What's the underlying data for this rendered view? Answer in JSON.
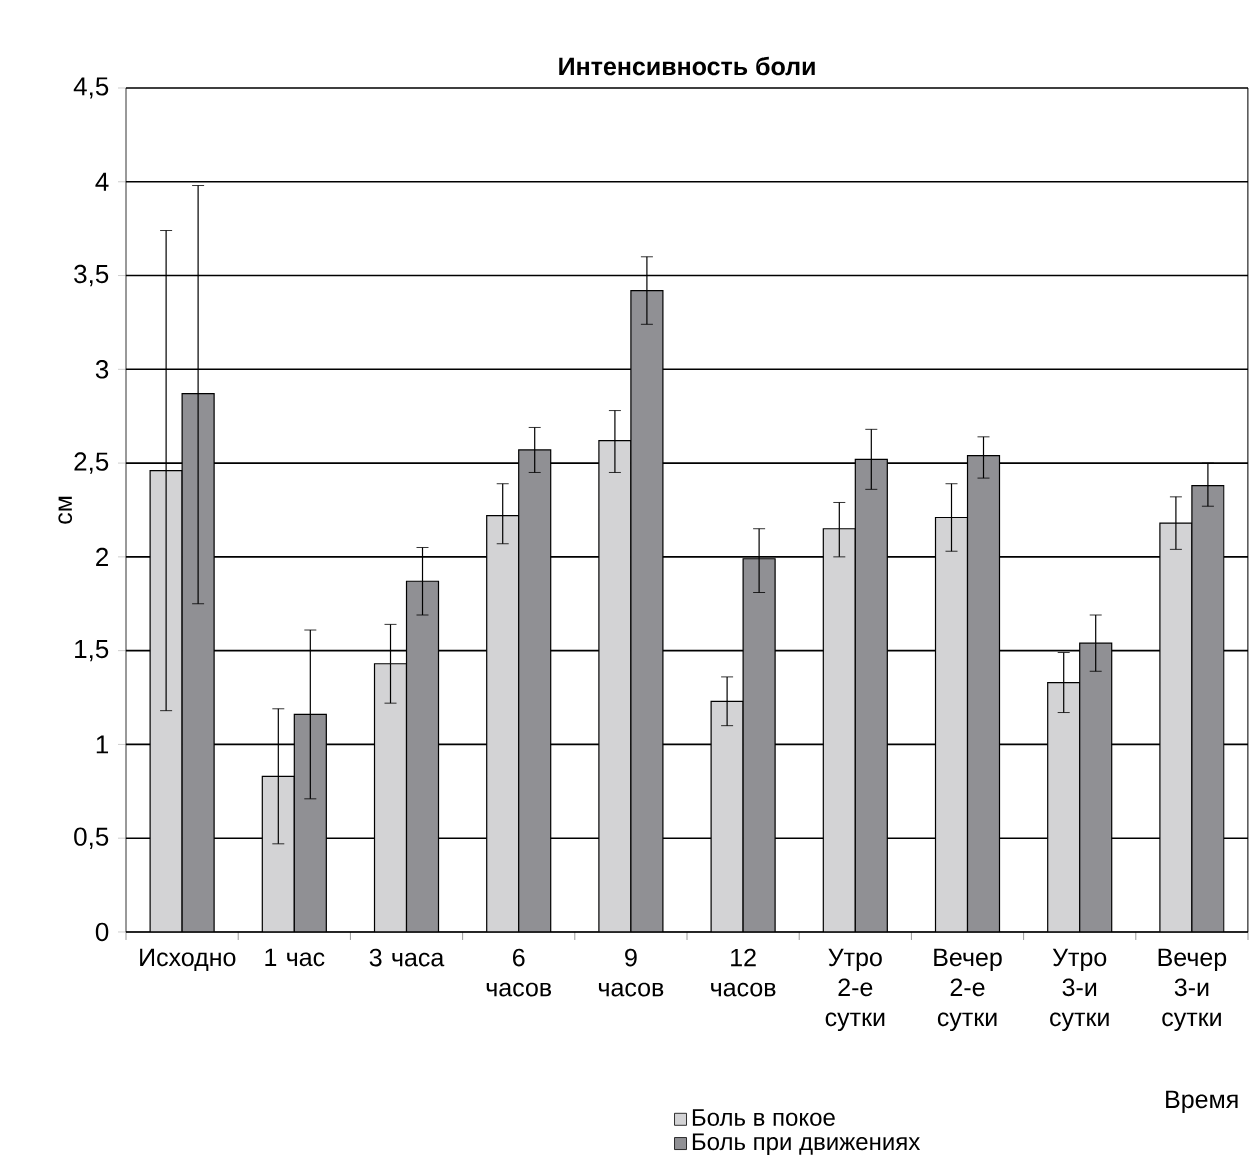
{
  "chart_data": {
    "type": "bar",
    "title": "Интенсивность боли",
    "xlabel": "Время",
    "ylabel": "см",
    "categories": [
      "Исходно",
      "1 час",
      "3 часа",
      "6 часов",
      "9 часов",
      "12 часов",
      "Утро 2-е сутки",
      "Вечер 2-е сутки",
      "Утро 3-и сутки",
      "Вечер 3-и сутки"
    ],
    "series": [
      {
        "name": "Боль в покое",
        "color": "#d3d3d5",
        "values": [
          2.46,
          0.83,
          1.43,
          2.22,
          2.62,
          1.23,
          2.15,
          2.21,
          1.33,
          2.18
        ],
        "errors": [
          [
            1.18,
            3.74
          ],
          [
            0.47,
            1.19
          ],
          [
            1.22,
            1.64
          ],
          [
            2.07,
            2.39
          ],
          [
            2.45,
            2.78
          ],
          [
            1.1,
            1.36
          ],
          [
            2.0,
            2.29
          ],
          [
            2.03,
            2.39
          ],
          [
            1.17,
            1.49
          ],
          [
            2.04,
            2.32
          ]
        ]
      },
      {
        "name": "Боль при движениях",
        "color": "#909094",
        "values": [
          2.87,
          1.16,
          1.87,
          2.57,
          3.42,
          1.99,
          2.52,
          2.54,
          1.54,
          2.38
        ],
        "errors": [
          [
            1.75,
            3.98
          ],
          [
            0.71,
            1.61
          ],
          [
            1.69,
            2.05
          ],
          [
            2.45,
            2.69
          ],
          [
            3.24,
            3.6
          ],
          [
            1.81,
            2.15
          ],
          [
            2.36,
            2.68
          ],
          [
            2.42,
            2.64
          ],
          [
            1.39,
            1.69
          ],
          [
            2.27,
            2.5
          ]
        ]
      }
    ],
    "ylim": [
      0,
      4.5
    ],
    "yticks": [
      0,
      {
        "value": 0.5,
        "label": "0,5"
      },
      1,
      {
        "value": 1.5,
        "label": "1,5"
      },
      2,
      {
        "value": 2.5,
        "label": "2,5"
      },
      3,
      {
        "value": 3.5,
        "label": "3,5"
      },
      4,
      {
        "value": 4.5,
        "label": "4,5"
      }
    ],
    "grid": "y",
    "legend": "bottom"
  }
}
